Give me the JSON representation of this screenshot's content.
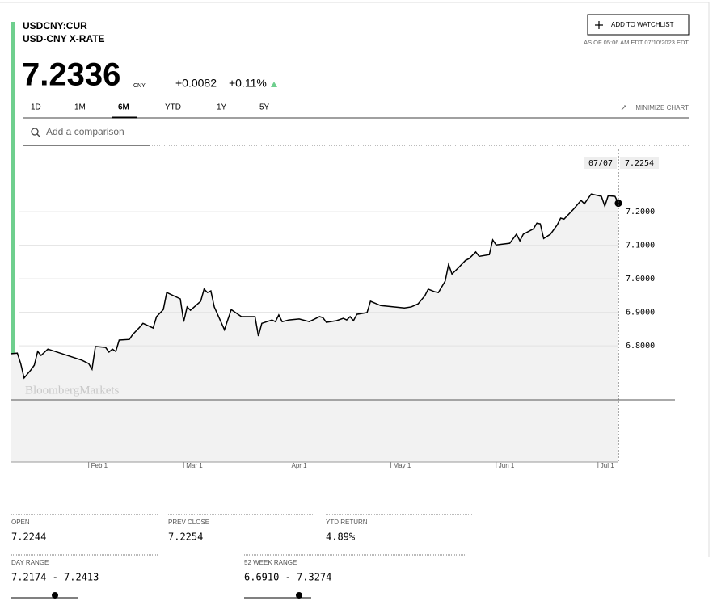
{
  "header": {
    "ticker": "USDCNY:CUR",
    "name": "USD-CNY X-RATE",
    "watchlist_button": "ADD TO WATCHLIST",
    "as_of": "AS OF 05:06 AM EDT 07/10/2023 EDT"
  },
  "quote": {
    "price": "7.2336",
    "currency": "CNY",
    "change": "+0.0082",
    "change_percent": "+0.11%"
  },
  "tabs": [
    "1D",
    "1M",
    "6M",
    "YTD",
    "1Y",
    "5Y"
  ],
  "active_tab": "6M",
  "minimize_chart": "MINIMIZE CHART",
  "comparison_placeholder": "Add a comparison",
  "chart_data": {
    "type": "line",
    "watermark": "BloombergMarkets",
    "color": "#000000",
    "area_color": "#f2f2f2",
    "x": [
      9,
      11,
      12,
      13,
      15,
      16,
      17,
      18,
      20,
      30,
      32,
      33,
      34,
      37,
      38,
      39,
      40,
      41,
      44,
      45,
      47,
      48,
      51,
      52,
      54,
      55,
      59,
      60,
      61,
      62,
      65,
      66,
      67,
      68,
      69,
      72,
      74,
      77,
      81,
      82,
      83,
      86,
      87,
      88,
      89,
      91,
      94,
      97,
      100,
      101,
      102,
      105,
      107,
      108,
      109,
      110,
      111,
      114,
      115,
      118,
      125,
      127,
      129,
      131,
      132,
      134,
      135,
      137,
      138,
      139,
      141,
      143,
      144,
      146,
      147,
      150,
      151,
      152,
      156,
      158,
      159,
      160,
      163,
      164,
      165,
      166,
      168,
      170,
      171,
      172,
      175,
      177,
      178,
      180,
      183,
      184,
      185,
      187,
      188
    ],
    "values": [
      6.776,
      6.778,
      6.747,
      6.704,
      6.728,
      6.742,
      6.783,
      6.771,
      6.79,
      6.757,
      6.747,
      6.73,
      6.798,
      6.795,
      6.781,
      6.79,
      6.783,
      6.817,
      6.819,
      6.834,
      6.855,
      6.867,
      6.853,
      6.887,
      6.908,
      6.959,
      6.94,
      6.872,
      6.916,
      6.906,
      6.933,
      6.969,
      6.959,
      6.964,
      6.916,
      6.848,
      6.908,
      6.887,
      6.887,
      6.829,
      6.867,
      6.877,
      6.872,
      6.892,
      6.872,
      6.877,
      6.88,
      6.872,
      6.887,
      6.884,
      6.87,
      6.875,
      6.882,
      6.877,
      6.887,
      6.875,
      6.894,
      6.899,
      6.933,
      6.92,
      6.913,
      6.916,
      6.925,
      6.949,
      6.969,
      6.961,
      6.959,
      6.993,
      7.043,
      7.014,
      7.034,
      7.055,
      7.06,
      7.08,
      7.067,
      7.072,
      7.116,
      7.101,
      7.106,
      7.133,
      7.113,
      7.133,
      7.149,
      7.166,
      7.164,
      7.12,
      7.133,
      7.161,
      7.181,
      7.178,
      7.21,
      7.234,
      7.224,
      7.253,
      7.246,
      7.217,
      7.248,
      7.246,
      7.2254
    ],
    "xlim": [
      9,
      188
    ],
    "xticks": [
      {
        "value": 32,
        "label": "Feb 1"
      },
      {
        "value": 60,
        "label": "Mar 1"
      },
      {
        "value": 91,
        "label": "Apr 1"
      },
      {
        "value": 121,
        "label": "May 1"
      },
      {
        "value": 152,
        "label": "Jun 1"
      },
      {
        "value": 182,
        "label": "Jul 1"
      }
    ],
    "ylim": [
      6.453,
      7.386
    ],
    "yticks": [
      {
        "value": 6.8,
        "label": "6.8000"
      },
      {
        "value": 6.9,
        "label": "6.9000"
      },
      {
        "value": 7.0,
        "label": "7.0000"
      },
      {
        "value": 7.1,
        "label": "7.1000"
      },
      {
        "value": 7.2,
        "label": "7.2000"
      }
    ],
    "grid": true,
    "tooltip": {
      "date": "07/07",
      "value": "7.2254"
    }
  },
  "stats": [
    {
      "label": "OPEN",
      "value": "7.2244"
    },
    {
      "label": "PREV CLOSE",
      "value": "7.2254"
    },
    {
      "label": "YTD RETURN",
      "value": "4.89%"
    },
    {
      "label": "DAY RANGE",
      "value": "7.2174 - 7.2413"
    },
    {
      "label": "52 WEEK RANGE",
      "value": "6.6910 - 7.3274"
    }
  ]
}
